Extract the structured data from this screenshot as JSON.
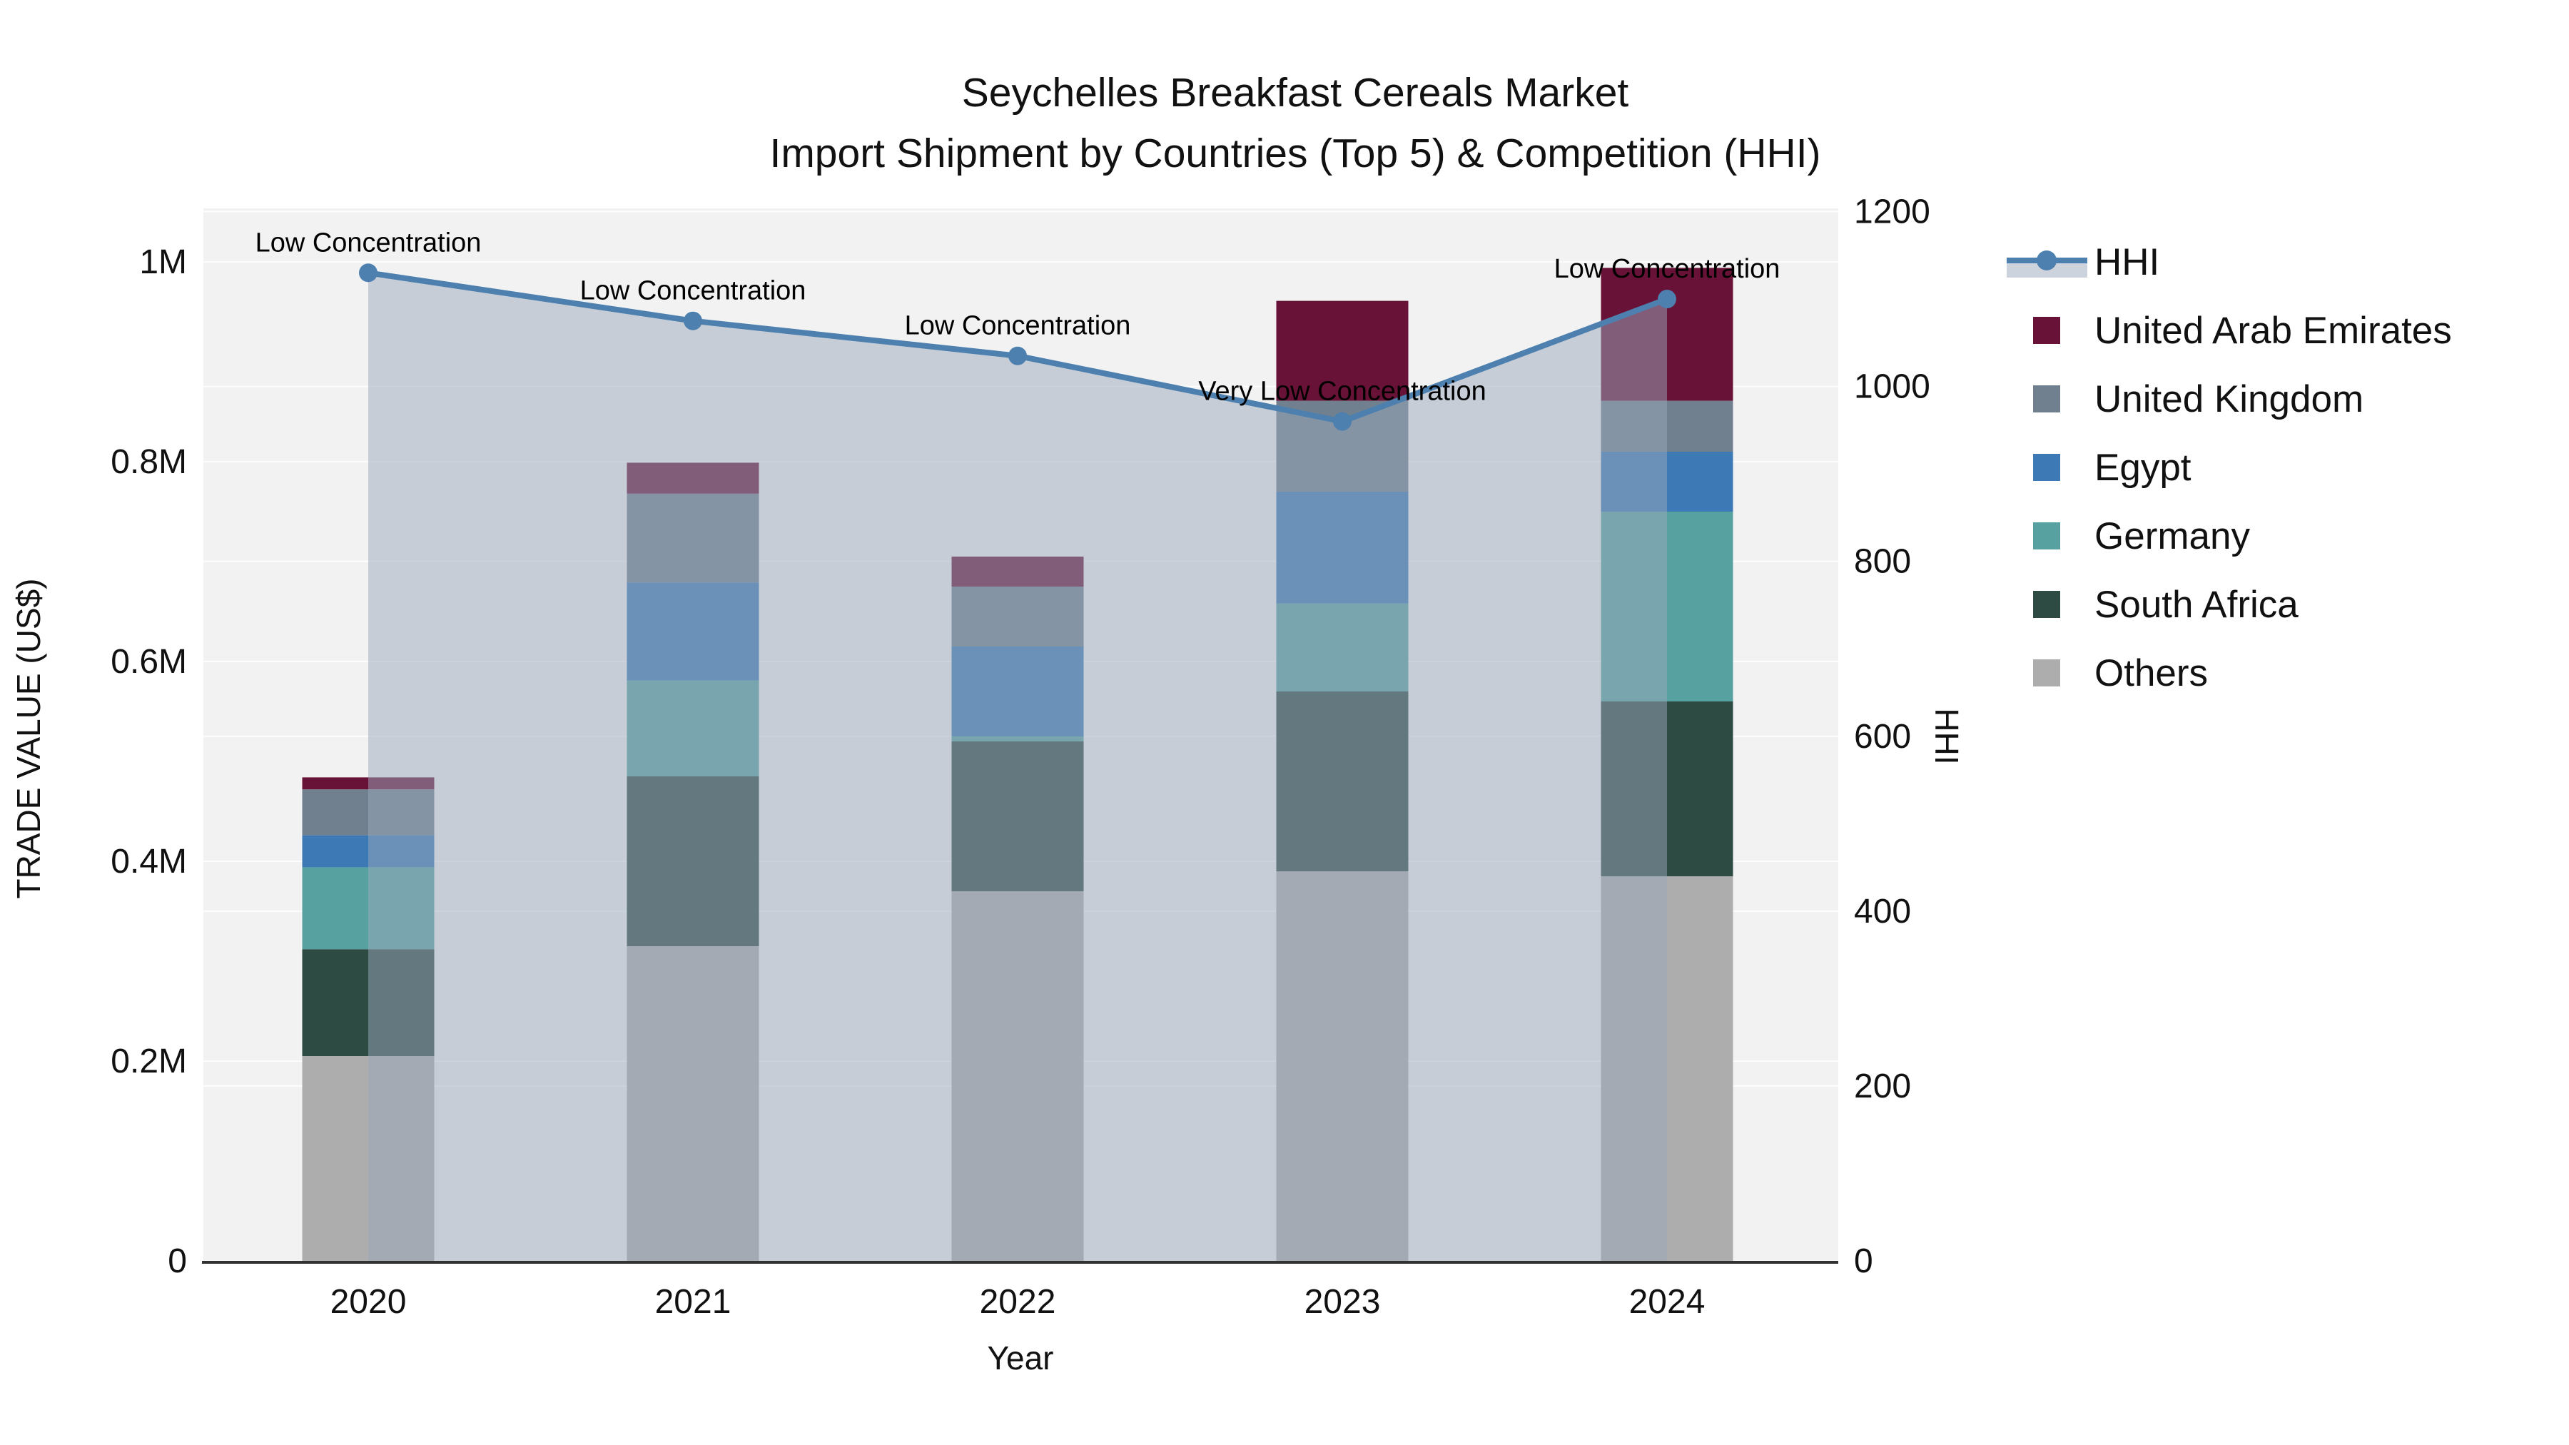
{
  "title": {
    "line1": "Seychelles Breakfast Cereals Market",
    "line2": "Import Shipment by Countries (Top 5) & Competition (HHI)"
  },
  "axes": {
    "x": {
      "title": "Year",
      "ticks": [
        "2020",
        "2021",
        "2022",
        "2023",
        "2024"
      ]
    },
    "y_left": {
      "title": "TRADE VALUE (US$)",
      "unit": "millions US$",
      "ticks": [
        {
          "label": "0",
          "value": 0
        },
        {
          "label": "0.2M",
          "value": 0.2
        },
        {
          "label": "0.4M",
          "value": 0.4
        },
        {
          "label": "0.6M",
          "value": 0.6
        },
        {
          "label": "0.8M",
          "value": 0.8
        },
        {
          "label": "1M",
          "value": 1.0
        }
      ]
    },
    "y_right": {
      "title": "HHI",
      "ticks": [
        {
          "label": "0",
          "value": 0
        },
        {
          "label": "200",
          "value": 200
        },
        {
          "label": "400",
          "value": 400
        },
        {
          "label": "600",
          "value": 600
        },
        {
          "label": "800",
          "value": 800
        },
        {
          "label": "1000",
          "value": 1000
        },
        {
          "label": "1200",
          "value": 1200
        }
      ]
    }
  },
  "legend": {
    "items": [
      {
        "label": "HHI",
        "type": "line",
        "color": "#4D80AE",
        "band": "#CCD3DC"
      },
      {
        "label": "United Arab Emirates",
        "type": "square",
        "color": "#691237"
      },
      {
        "label": "United Kingdom",
        "type": "square",
        "color": "#71808F"
      },
      {
        "label": "Egypt",
        "type": "square",
        "color": "#3D7AB5"
      },
      {
        "label": "Germany",
        "type": "square",
        "color": "#57A2A0"
      },
      {
        "label": "South Africa",
        "type": "square",
        "color": "#2D4A43"
      },
      {
        "label": "Others",
        "type": "square",
        "color": "#ADADAD"
      }
    ]
  },
  "chart_data": {
    "type": [
      "bar",
      "line"
    ],
    "title": "Seychelles Breakfast Cereals Market — Import Shipment by Countries (Top 5) & Competition (HHI)",
    "xlabel": "Year",
    "ylabel_left": "TRADE VALUE (US$)",
    "ylabel_right": "HHI",
    "categories": [
      2020,
      2021,
      2022,
      2023,
      2024
    ],
    "bar_value_unit": "millions US$",
    "y_left_range": [
      0,
      1.0536
    ],
    "y_right_range": [
      0,
      1204
    ],
    "grid": true,
    "legend_position": "right",
    "stack_order": "bottom-to-top",
    "series": [
      {
        "name": "Others",
        "color": "#ADADAD",
        "values": [
          0.205,
          0.315,
          0.37,
          0.39,
          0.385
        ]
      },
      {
        "name": "South Africa",
        "color": "#2D4A43",
        "values": [
          0.107,
          0.17,
          0.15,
          0.18,
          0.175
        ]
      },
      {
        "name": "Germany",
        "color": "#57A2A0",
        "values": [
          0.082,
          0.096,
          0.005,
          0.088,
          0.19
        ]
      },
      {
        "name": "Egypt",
        "color": "#3D7AB5",
        "values": [
          0.032,
          0.098,
          0.09,
          0.112,
          0.06
        ]
      },
      {
        "name": "United Kingdom",
        "color": "#71808F",
        "values": [
          0.046,
          0.089,
          0.06,
          0.091,
          0.051
        ]
      },
      {
        "name": "United Arab Emirates",
        "color": "#691237",
        "values": [
          0.012,
          0.031,
          0.03,
          0.1,
          0.133
        ]
      }
    ],
    "hhi_line": {
      "name": "HHI",
      "axis": "right",
      "color": "#4D80AE",
      "area_fill": "rgba(153,168,188,0.5)",
      "values": [
        1130,
        1075,
        1035,
        960,
        1100
      ]
    },
    "annotations": [
      {
        "category": 2020,
        "text": "Low Concentration"
      },
      {
        "category": 2021,
        "text": "Low Concentration"
      },
      {
        "category": 2022,
        "text": "Low Concentration"
      },
      {
        "category": 2023,
        "text": "Very Low Concentration"
      },
      {
        "category": 2024,
        "text": "Low Concentration"
      }
    ],
    "style": {
      "plot_bg": "#F2F2F2",
      "grid_color": "rgba(255,255,255,0.85)",
      "axis_line_color": "#323232",
      "text_color": "#111111"
    }
  }
}
